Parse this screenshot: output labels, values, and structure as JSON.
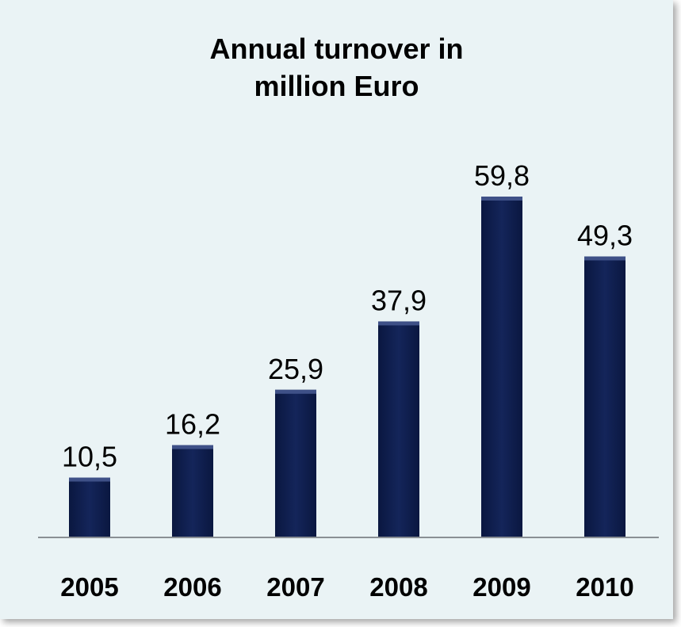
{
  "colors": {
    "background": "#eaf3f5",
    "bar": "#0f1f4d",
    "bar_highlight": "#3e5087",
    "axis": "#8a8f94"
  },
  "chart_data": {
    "type": "bar",
    "title": "Annual turnover in million Euro",
    "title_lines": [
      "Annual turnover in",
      "million Euro"
    ],
    "categories": [
      "2005",
      "2006",
      "2007",
      "2008",
      "2009",
      "2010"
    ],
    "values": [
      10.5,
      16.2,
      25.9,
      37.9,
      59.8,
      49.3
    ],
    "value_labels": [
      "10,5",
      "16,2",
      "25,9",
      "37,9",
      "59,8",
      "49,3"
    ],
    "xlabel": "",
    "ylabel": "",
    "ylim": [
      0,
      60
    ],
    "grid": false,
    "legend": "none"
  }
}
